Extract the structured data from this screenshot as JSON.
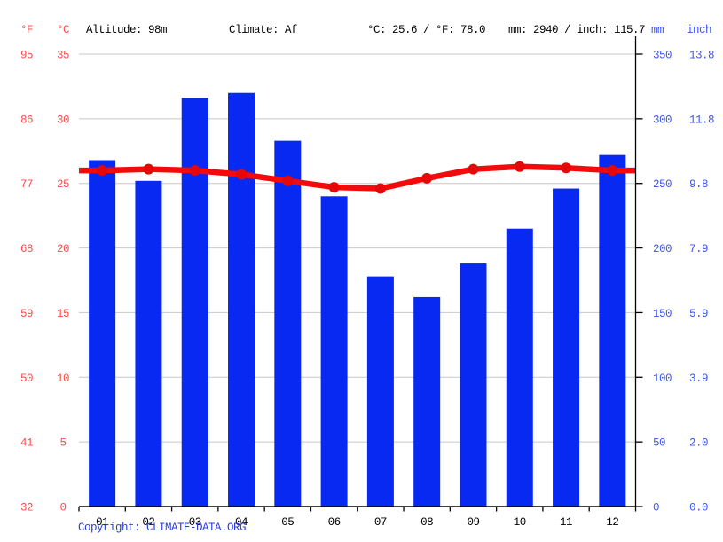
{
  "header": {
    "fahrenheit_label": "°F",
    "celsius_label": "°C",
    "altitude": "Altitude: 98m",
    "climate": "Climate: Af",
    "temperature_summary": "°C: 25.6 / °F: 78.0",
    "precipitation_summary": "mm: 2940 / inch: 115.7",
    "mm_label": "mm",
    "inch_label": "inch"
  },
  "footer": {
    "copyright_prefix": "Copyright: ",
    "copyright_link": "CLIMATE-DATA.ORG"
  },
  "colors": {
    "bar_blue": "#0829f2",
    "line_red": "#f30b0b",
    "dot_red": "#e50808",
    "temp_text_red": "#fb4b4b",
    "precip_text_blue": "#3c55f0",
    "link_blue": "#2b3cd9",
    "gridline_gray": "#c8c8c8",
    "axis_black": "#000000"
  },
  "chart_data": {
    "type": "bar",
    "note": "combined precipitation bars + temperature line climate graph",
    "categories": [
      "01",
      "02",
      "03",
      "04",
      "05",
      "06",
      "07",
      "08",
      "09",
      "10",
      "11",
      "12"
    ],
    "series": [
      {
        "name": "Precipitation (mm)",
        "type": "bar",
        "values": [
          268,
          252,
          316,
          320,
          283,
          240,
          178,
          162,
          188,
          215,
          246,
          272
        ]
      },
      {
        "name": "Temperature (°C)",
        "type": "line",
        "values": [
          26.0,
          26.1,
          26.0,
          25.7,
          25.2,
          24.7,
          24.6,
          25.4,
          26.1,
          26.3,
          26.2,
          26.0
        ]
      }
    ],
    "axes": {
      "temp_f_ticks": [
        "95",
        "86",
        "77",
        "68",
        "59",
        "50",
        "41",
        "32"
      ],
      "temp_c_ticks": [
        "35",
        "30",
        "25",
        "20",
        "15",
        "10",
        "5",
        "0"
      ],
      "precip_mm_ticks": [
        "350",
        "300",
        "250",
        "200",
        "150",
        "100",
        "50",
        "0"
      ],
      "precip_inch_ticks": [
        "13.8",
        "11.8",
        "9.8",
        "7.9",
        "5.9",
        "3.9",
        "2.0",
        "0.0"
      ],
      "temp_c_range": [
        0,
        35
      ],
      "precip_mm_range": [
        0,
        350
      ]
    },
    "grid": true,
    "legend": "none",
    "annual_mean_temp_c": 25.6,
    "annual_mean_temp_f": 78.0,
    "annual_precip_mm": 2940,
    "annual_precip_inch": 115.7
  }
}
